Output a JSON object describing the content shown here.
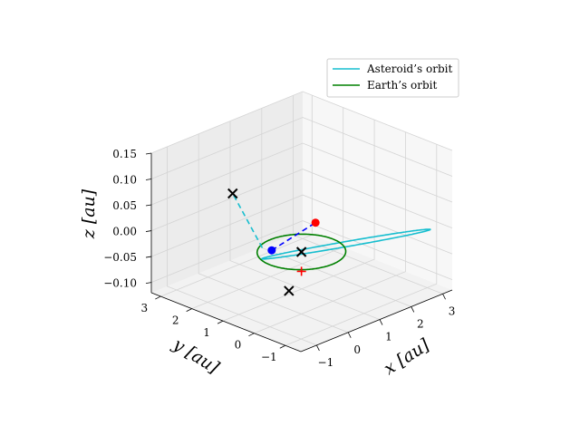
{
  "chart_data": {
    "type": "line",
    "projection": "3d",
    "xlabel": "x [au]",
    "ylabel": "y [au]",
    "zlabel": "z [au]",
    "xlim": [
      -1.5,
      3.3
    ],
    "ylim": [
      -1.5,
      3.3
    ],
    "zlim": [
      -0.12,
      0.15
    ],
    "x_ticks": [
      -1,
      0,
      1,
      2,
      3
    ],
    "y_ticks": [
      -1,
      0,
      1,
      2,
      3
    ],
    "z_ticks": [
      -0.1,
      -0.05,
      0.0,
      0.05,
      0.1,
      0.15
    ],
    "x_tick_labels": [
      "−1",
      "0",
      "1",
      "2",
      "3"
    ],
    "y_tick_labels": [
      "−1",
      "0",
      "1",
      "2",
      "3"
    ],
    "z_tick_labels": [
      "−0.10",
      "−0.05",
      "0.00",
      "0.05",
      "0.10",
      "0.15"
    ],
    "grid": true,
    "legend": {
      "position": "top-right",
      "entries": [
        {
          "label": "Asteroid’s orbit",
          "color": "#17becf"
        },
        {
          "label": "Earth’s orbit",
          "color": "#008000"
        }
      ]
    },
    "series": [
      {
        "name": "Asteroid’s orbit",
        "kind": "ellipse",
        "color": "#17becf",
        "semi_major_axis": 1.9,
        "eccentricity": 0.53,
        "perihelion_direction": [
          -0.72,
          0.7,
          0.0
        ],
        "orbit_normal": [
          0.012,
          0.032,
          1.0
        ]
      },
      {
        "name": "Earth’s orbit",
        "kind": "circle",
        "color": "#008000",
        "radius": 1.0,
        "center": [
          0,
          0,
          0
        ]
      }
    ],
    "segments": [
      {
        "name": "asteroid-line-of-sight",
        "color": "#17becf",
        "dash": true,
        "from": [
          -0.45,
          0.8,
          0.0
        ],
        "to": [
          -0.6,
          1.6,
          0.09
        ]
      },
      {
        "name": "node-connection",
        "color": "#0000ff",
        "dash": true,
        "from": [
          -0.4,
          0.55,
          0.0
        ],
        "to": [
          0.15,
          -0.3,
          0.06
        ]
      }
    ],
    "points": [
      {
        "name": "red-point",
        "marker": "circle",
        "color": "#ff0000",
        "xyz": [
          0.15,
          -0.3,
          0.06
        ]
      },
      {
        "name": "blue-point",
        "marker": "circle",
        "color": "#0000ff",
        "xyz": [
          -0.4,
          0.55,
          0.0
        ]
      },
      {
        "name": "red-plus",
        "marker": "plus",
        "color": "#ff0000",
        "xyz": [
          0.05,
          0.05,
          -0.04
        ]
      },
      {
        "name": "cross-upper",
        "marker": "x",
        "color": "#000000",
        "xyz": [
          -0.6,
          1.6,
          0.09
        ]
      },
      {
        "name": "cross-middle",
        "marker": "x",
        "color": "#000000",
        "xyz": [
          0.0,
          0.0,
          0.0
        ]
      },
      {
        "name": "cross-lower",
        "marker": "x",
        "color": "#000000",
        "xyz": [
          -0.1,
          0.3,
          -0.08
        ]
      }
    ]
  }
}
